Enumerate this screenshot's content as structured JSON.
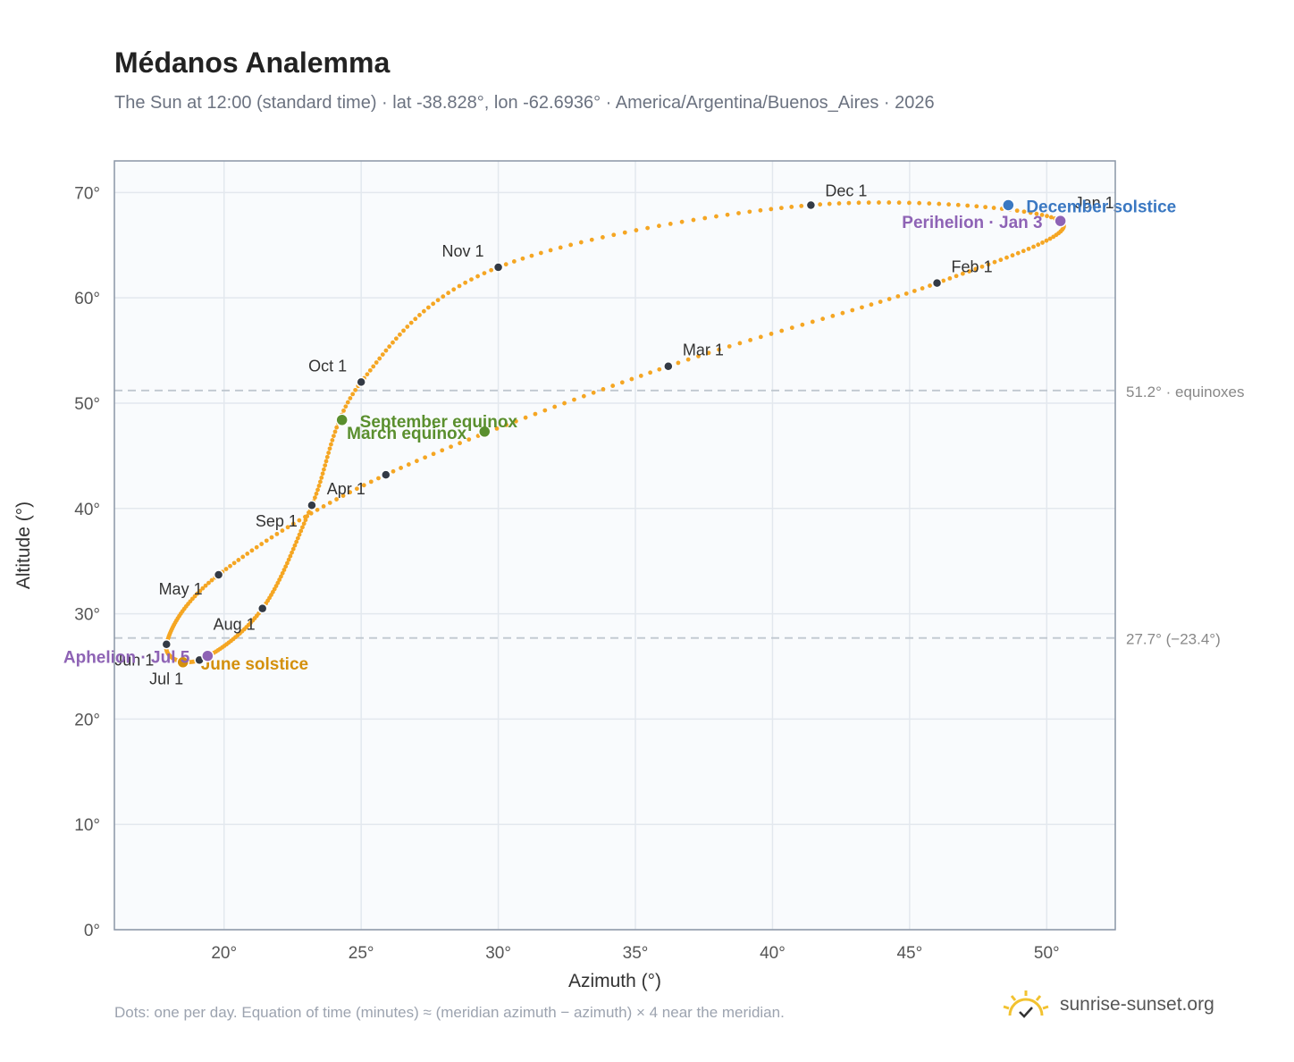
{
  "header": {
    "title": "Médanos Analemma",
    "subtitle": "The Sun at 12:00 (standard time) · lat -38.828°, lon -62.6936° · America/Argentina/Buenos_Aires · 2026"
  },
  "footer": {
    "note": "Dots: one per day. Equation of time (minutes) ≈ (meridian azimuth − azimuth) × 4 near the meridian.",
    "brand": "sunrise-sunset.org",
    "brand_icon": "sun-logo-icon"
  },
  "colors": {
    "curve": "#f5a623",
    "month_marker": "#333a45",
    "equinox": "#5a8f2e",
    "june_solstice": "#d4900c",
    "december_solstice": "#3a78c2",
    "apsis": "#8e63b5",
    "plot_background": "#f9fbfd",
    "grid": "#e3e8ee",
    "reference_line": "#c0c8d0"
  },
  "chart_data": {
    "type": "scatter",
    "xlabel": "Azimuth (°)",
    "ylabel": "Altitude (°)",
    "xlim": [
      16,
      52.5
    ],
    "ylim": [
      0,
      73
    ],
    "x_ticks": [
      {
        "value": 20,
        "label": "20°"
      },
      {
        "value": 25,
        "label": "25°"
      },
      {
        "value": 30,
        "label": "30°"
      },
      {
        "value": 35,
        "label": "35°"
      },
      {
        "value": 40,
        "label": "40°"
      },
      {
        "value": 45,
        "label": "45°"
      },
      {
        "value": 50,
        "label": "50°"
      }
    ],
    "y_ticks": [
      {
        "value": 0,
        "label": "0°"
      },
      {
        "value": 10,
        "label": "10°"
      },
      {
        "value": 20,
        "label": "20°"
      },
      {
        "value": 30,
        "label": "30°"
      },
      {
        "value": 40,
        "label": "40°"
      },
      {
        "value": 50,
        "label": "50°"
      },
      {
        "value": 60,
        "label": "60°"
      },
      {
        "value": 70,
        "label": "70°"
      }
    ],
    "grid": true,
    "month_markers": [
      {
        "label": "Jan 1",
        "x": 50.5,
        "y": 67.3
      },
      {
        "label": "Feb 1",
        "x": 46.0,
        "y": 61.4
      },
      {
        "label": "Mar 1",
        "x": 36.2,
        "y": 53.5
      },
      {
        "label": "Apr 1",
        "x": 25.9,
        "y": 43.2
      },
      {
        "label": "May 1",
        "x": 19.8,
        "y": 33.7
      },
      {
        "label": "Jun 1",
        "x": 17.9,
        "y": 27.1
      },
      {
        "label": "Jul 1",
        "x": 19.1,
        "y": 25.6
      },
      {
        "label": "Aug 1",
        "x": 21.4,
        "y": 30.5
      },
      {
        "label": "Sep 1",
        "x": 23.2,
        "y": 40.3
      },
      {
        "label": "Oct 1",
        "x": 25.0,
        "y": 52.0
      },
      {
        "label": "Nov 1",
        "x": 30.0,
        "y": 62.9
      },
      {
        "label": "Dec 1",
        "x": 41.4,
        "y": 68.8
      }
    ],
    "events": [
      {
        "label": "March equinox",
        "x": 29.5,
        "y": 47.3,
        "color_key": "equinox"
      },
      {
        "label": "September equinox",
        "x": 24.3,
        "y": 48.4,
        "color_key": "equinox"
      },
      {
        "label": "June solstice",
        "x": 18.5,
        "y": 25.4,
        "color_key": "june_solstice"
      },
      {
        "label": "December solstice",
        "x": 48.6,
        "y": 68.8,
        "color_key": "december_solstice"
      },
      {
        "label": "Aphelion · Jul 5",
        "x": 19.4,
        "y": 26.0,
        "color_key": "apsis"
      },
      {
        "label": "Perihelion · Jan 3",
        "x": 50.5,
        "y": 67.3,
        "color_key": "apsis"
      }
    ],
    "reference_lines": [
      {
        "y": 51.2,
        "label": "51.2° · equinoxes"
      },
      {
        "y": 27.7,
        "label": "27.7° (−23.4°)"
      }
    ]
  }
}
